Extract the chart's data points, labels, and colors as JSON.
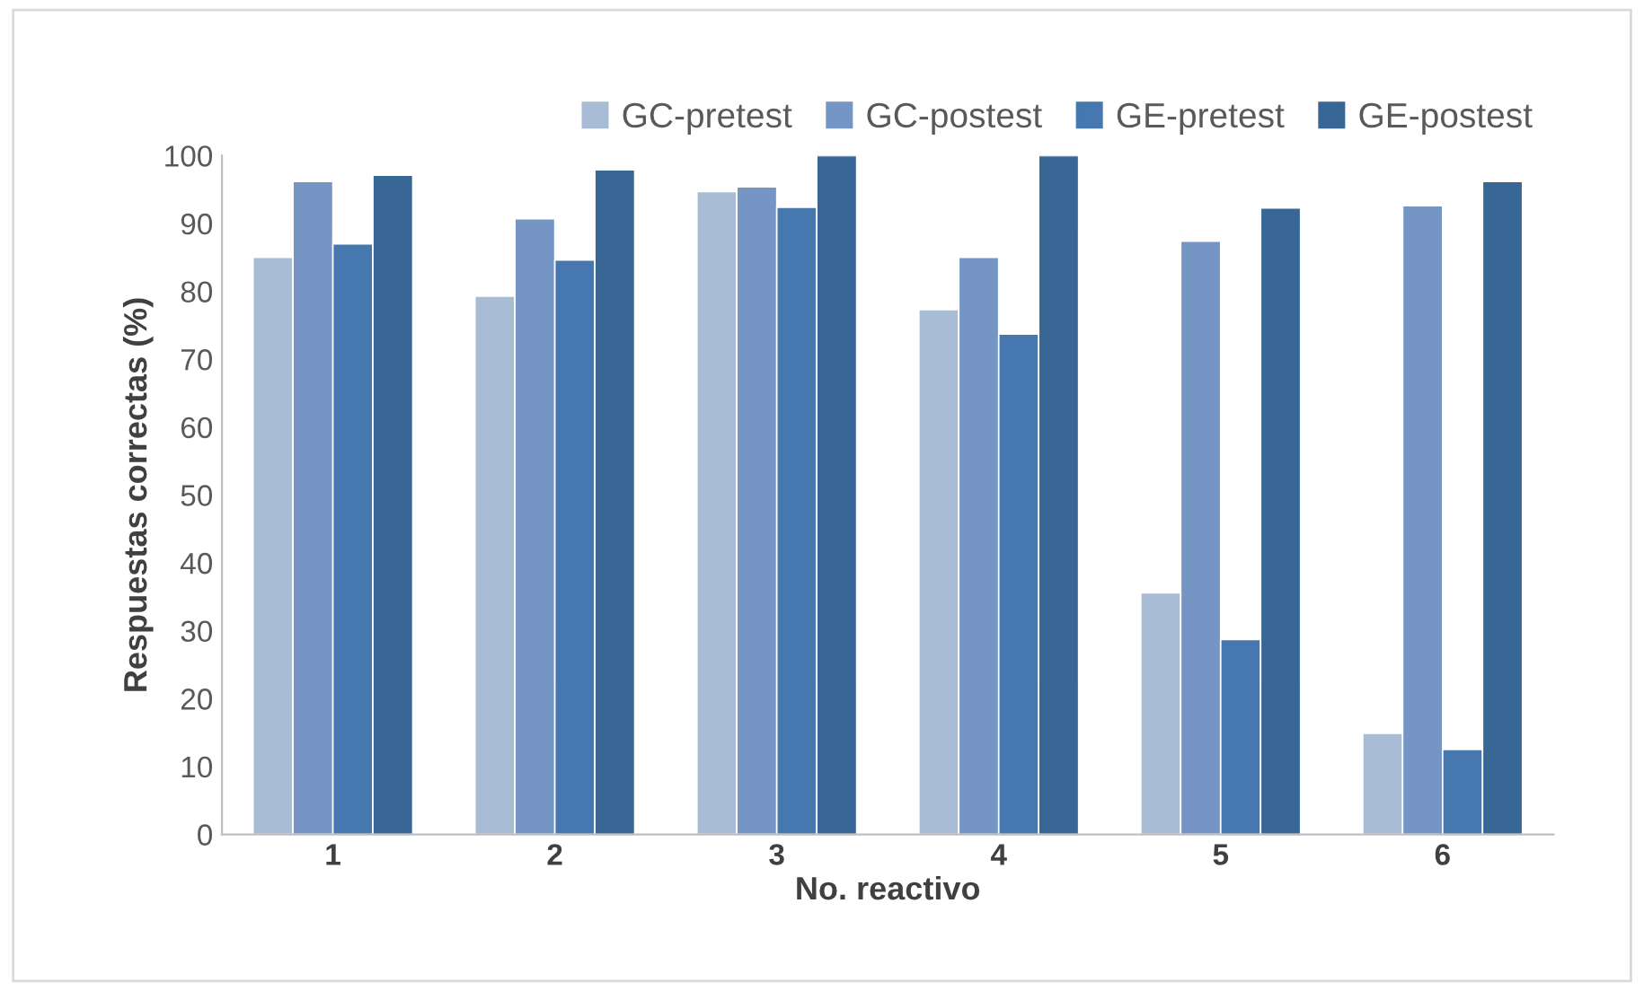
{
  "chart_data": {
    "type": "bar",
    "xlabel": "No. reactivo",
    "ylabel": "Respuestas correctas (%)",
    "categories": [
      "1",
      "2",
      "3",
      "4",
      "5",
      "6"
    ],
    "series": [
      {
        "name": "GC-pretest",
        "color": "#a9bcd6",
        "values": [
          85.0,
          79.3,
          94.7,
          77.3,
          35.6,
          14.9
        ]
      },
      {
        "name": "GC-postest",
        "color": "#7596c4",
        "values": [
          96.2,
          90.7,
          95.4,
          85.0,
          87.4,
          92.6
        ]
      },
      {
        "name": "GE-pretest",
        "color": "#4677ae",
        "values": [
          87.0,
          84.6,
          92.4,
          73.7,
          28.7,
          12.5
        ]
      },
      {
        "name": "GE-postest",
        "color": "#386795",
        "values": [
          97.1,
          97.9,
          100,
          100,
          92.3,
          96.2
        ]
      }
    ],
    "ylim": [
      0,
      100
    ],
    "yticks": [
      0,
      10,
      20,
      30,
      40,
      50,
      60,
      70,
      80,
      90,
      100
    ],
    "grid": false,
    "legend": "top right"
  }
}
